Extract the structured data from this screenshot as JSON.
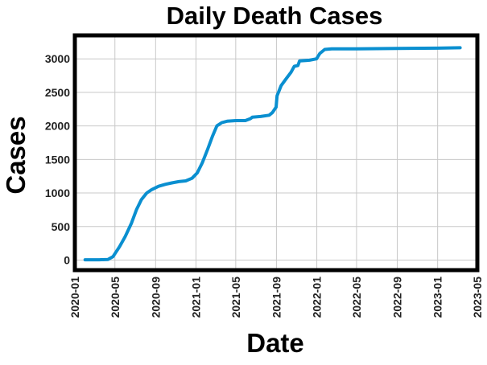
{
  "chart_data": {
    "type": "line",
    "title": "Daily Death Cases",
    "xlabel": "Date",
    "ylabel": "Cases",
    "xlim": [
      "2020-01-01",
      "2023-05-01"
    ],
    "ylim": [
      -150,
      3350
    ],
    "x_ticks": [
      "2020-01",
      "2020-05",
      "2020-09",
      "2021-01",
      "2021-05",
      "2021-09",
      "2022-01",
      "2022-05",
      "2022-09",
      "2023-01",
      "2023-05"
    ],
    "y_ticks": [
      0,
      500,
      1000,
      1500,
      2000,
      2500,
      3000
    ],
    "grid": true,
    "series": [
      {
        "color": "#0a8fd0",
        "x": [
          "2020-02-01",
          "2020-03-15",
          "2020-04-10",
          "2020-04-25",
          "2020-05-15",
          "2020-06-01",
          "2020-06-20",
          "2020-07-05",
          "2020-07-20",
          "2020-08-05",
          "2020-08-20",
          "2020-09-10",
          "2020-10-01",
          "2020-10-20",
          "2020-11-10",
          "2020-12-01",
          "2020-12-20",
          "2021-01-05",
          "2021-01-20",
          "2021-02-05",
          "2021-02-20",
          "2021-03-05",
          "2021-03-20",
          "2021-04-05",
          "2021-05-01",
          "2021-05-30",
          "2021-06-15",
          "2021-06-20",
          "2021-07-15",
          "2021-08-10",
          "2021-08-20",
          "2021-08-31",
          "2021-09-03",
          "2021-09-15",
          "2021-09-30",
          "2021-10-15",
          "2021-10-25",
          "2021-11-05",
          "2021-11-10",
          "2021-12-10",
          "2021-12-31",
          "2022-01-10",
          "2022-01-25",
          "2022-02-15",
          "2022-05-01",
          "2022-09-01",
          "2023-01-01",
          "2023-03-10"
        ],
        "y": [
          5,
          5,
          10,
          50,
          200,
          350,
          550,
          750,
          900,
          1000,
          1050,
          1100,
          1130,
          1150,
          1170,
          1180,
          1220,
          1300,
          1450,
          1650,
          1850,
          2000,
          2050,
          2070,
          2080,
          2080,
          2110,
          2130,
          2140,
          2160,
          2200,
          2280,
          2450,
          2600,
          2700,
          2800,
          2890,
          2900,
          2970,
          2980,
          3000,
          3080,
          3140,
          3150,
          3150,
          3155,
          3160,
          3165
        ]
      }
    ]
  }
}
